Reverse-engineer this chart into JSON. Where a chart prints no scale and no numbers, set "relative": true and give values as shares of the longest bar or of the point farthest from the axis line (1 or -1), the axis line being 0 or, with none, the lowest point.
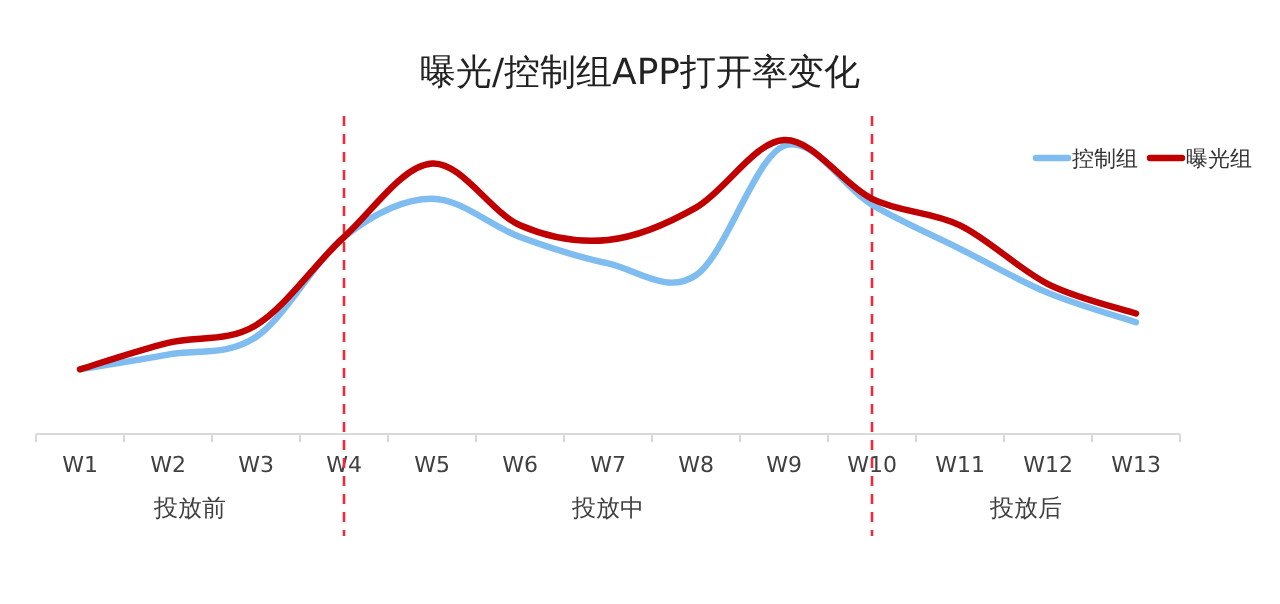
{
  "chart_data": {
    "type": "line",
    "title": "曝光/控制组APP打开率变化",
    "relative": true,
    "categories": [
      "W1",
      "W2",
      "W3",
      "W4",
      "W5",
      "W6",
      "W7",
      "W8",
      "W9",
      "W10",
      "W11",
      "W12",
      "W13"
    ],
    "series": [
      {
        "name": "控制组",
        "color": "#7fbcef",
        "values": [
          0.22,
          0.27,
          0.33,
          0.67,
          0.8,
          0.67,
          0.58,
          0.54,
          0.98,
          0.78,
          0.63,
          0.48,
          0.38
        ]
      },
      {
        "name": "曝光组",
        "color": "#c00000",
        "values": [
          0.22,
          0.31,
          0.37,
          0.67,
          0.92,
          0.71,
          0.66,
          0.77,
          1.0,
          0.8,
          0.71,
          0.51,
          0.41
        ]
      }
    ],
    "ref_lines": [
      {
        "axis": "x",
        "value": "W4",
        "color": "#ee2b3b",
        "line_style": "dashed"
      },
      {
        "axis": "x",
        "value": "W10",
        "color": "#ee2b3b",
        "line_style": "dashed"
      }
    ],
    "annotations": [
      "投放前",
      "投放中",
      "投放后"
    ],
    "legend": "top right",
    "marker": "none",
    "line_style": "solid",
    "grid": false
  }
}
